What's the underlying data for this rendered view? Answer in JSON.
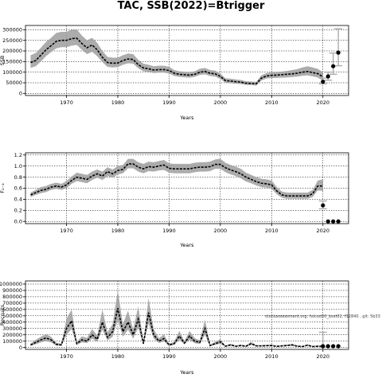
{
  "page": {
    "title": "TAC, SSB(2022)=Btrigger",
    "watermark": "stockassessment.org, fulcod20_bsst02, f12840 , git: 5b33"
  },
  "colors": {
    "band": "#9e9e9e",
    "line": "#000000",
    "dots": "#000000",
    "grid": "#000000",
    "projection_bar": "#a8a8a8"
  },
  "chart_data": [
    {
      "type": "line",
      "ylabel": "SSB",
      "xlabel": "Years",
      "xlim": [
        1962,
        2025
      ],
      "ylim": [
        -10000,
        320000
      ],
      "xticks": [
        1970,
        1980,
        1990,
        2000,
        2010,
        2020
      ],
      "yticks": [
        0,
        50000,
        100000,
        150000,
        200000,
        250000,
        300000
      ],
      "grid": true,
      "x": [
        1963,
        1964,
        1965,
        1966,
        1967,
        1968,
        1969,
        1970,
        1971,
        1972,
        1973,
        1974,
        1975,
        1976,
        1977,
        1978,
        1979,
        1980,
        1981,
        1982,
        1983,
        1984,
        1985,
        1986,
        1987,
        1988,
        1989,
        1990,
        1991,
        1992,
        1993,
        1994,
        1995,
        1996,
        1997,
        1998,
        1999,
        2000,
        2001,
        2002,
        2003,
        2004,
        2005,
        2006,
        2007,
        2008,
        2009,
        2010,
        2011,
        2012,
        2013,
        2014,
        2015,
        2016,
        2017,
        2018,
        2019,
        2020
      ],
      "series": [
        {
          "values": [
            145000,
            155000,
            180000,
            205000,
            225000,
            245000,
            250000,
            250000,
            258000,
            260000,
            235000,
            215000,
            228000,
            205000,
            170000,
            145000,
            142000,
            143000,
            155000,
            162000,
            160000,
            135000,
            120000,
            116000,
            110000,
            112000,
            112000,
            108000,
            95000,
            90000,
            88000,
            86000,
            90000,
            100000,
            103000,
            95000,
            92000,
            80000,
            60000,
            58000,
            55000,
            53000,
            48000,
            47000,
            45000,
            72000,
            82000,
            85000,
            86000,
            88000,
            90000,
            92000,
            95000,
            100000,
            103000,
            98000,
            93000,
            78000
          ],
          "lower": [
            120000,
            128000,
            150000,
            175000,
            195000,
            212000,
            218000,
            218000,
            225000,
            228000,
            205000,
            185000,
            196000,
            175000,
            147000,
            125000,
            122000,
            124000,
            135000,
            142000,
            140000,
            118000,
            104000,
            101000,
            96000,
            98000,
            98000,
            94000,
            82000,
            78000,
            76000,
            74000,
            78000,
            87000,
            90000,
            82000,
            79000,
            68000,
            50000,
            48000,
            46000,
            44000,
            40000,
            39000,
            37000,
            61000,
            70000,
            72000,
            73000,
            74000,
            75000,
            77000,
            79000,
            83000,
            85000,
            80000,
            75000,
            60000
          ],
          "upper": [
            180000,
            190000,
            215000,
            242000,
            262000,
            285000,
            290000,
            290000,
            300000,
            302000,
            272000,
            250000,
            262000,
            238000,
            200000,
            172000,
            168000,
            168000,
            180000,
            188000,
            185000,
            158000,
            140000,
            135000,
            128000,
            130000,
            130000,
            125000,
            110000,
            104000,
            102000,
            100000,
            104000,
            116000,
            120000,
            110000,
            107000,
            93000,
            71000,
            69000,
            66000,
            63000,
            57000,
            56000,
            54000,
            85000,
            96000,
            99000,
            100000,
            103000,
            106000,
            110000,
            114000,
            122000,
            128000,
            122000,
            115000,
            100000
          ]
        }
      ],
      "points": {
        "x": [
          2020,
          2021,
          2022,
          2023
        ],
        "y": [
          55000,
          80000,
          128000,
          192000
        ]
      },
      "projection_bars": [
        {
          "x": 2020,
          "low": 45000,
          "high": 72000
        },
        {
          "x": 2021,
          "low": 62000,
          "high": 100000
        },
        {
          "x": 2022,
          "low": 90000,
          "high": 190000
        },
        {
          "x": 2023,
          "low": 130000,
          "high": 305000
        }
      ]
    },
    {
      "type": "line",
      "ylabel": "F₂₋₄",
      "xlabel": "Years",
      "xlim": [
        1962,
        2025
      ],
      "ylim": [
        -0.04,
        1.24
      ],
      "xticks": [
        1970,
        1980,
        1990,
        2000,
        2010,
        2020
      ],
      "yticks": [
        0.0,
        0.2,
        0.4,
        0.6,
        0.8,
        1.0,
        1.2
      ],
      "ytick_labels": [
        "0.0",
        "0.2",
        "0.4",
        "0.6",
        "0.8",
        "1.0",
        "1.2"
      ],
      "grid": true,
      "x": [
        1963,
        1964,
        1965,
        1966,
        1967,
        1968,
        1969,
        1970,
        1971,
        1972,
        1973,
        1974,
        1975,
        1976,
        1977,
        1978,
        1979,
        1980,
        1981,
        1982,
        1983,
        1984,
        1985,
        1986,
        1987,
        1988,
        1989,
        1990,
        1991,
        1992,
        1993,
        1994,
        1995,
        1996,
        1997,
        1998,
        1999,
        2000,
        2001,
        2002,
        2003,
        2004,
        2005,
        2006,
        2007,
        2008,
        2009,
        2010,
        2011,
        2012,
        2013,
        2014,
        2015,
        2016,
        2017,
        2018,
        2019,
        2020
      ],
      "series": [
        {
          "values": [
            0.48,
            0.52,
            0.56,
            0.58,
            0.62,
            0.64,
            0.62,
            0.66,
            0.74,
            0.8,
            0.78,
            0.76,
            0.82,
            0.86,
            0.82,
            0.9,
            0.86,
            0.92,
            0.94,
            1.04,
            1.04,
            0.98,
            0.95,
            0.99,
            0.98,
            1.0,
            1.02,
            0.96,
            0.95,
            0.95,
            0.95,
            0.95,
            0.97,
            0.98,
            0.98,
            0.99,
            1.03,
            1.03,
            0.97,
            0.93,
            0.9,
            0.86,
            0.8,
            0.76,
            0.72,
            0.69,
            0.68,
            0.66,
            0.55,
            0.48,
            0.46,
            0.46,
            0.46,
            0.46,
            0.46,
            0.5,
            0.64,
            0.64
          ],
          "lower": [
            0.44,
            0.48,
            0.51,
            0.53,
            0.57,
            0.59,
            0.57,
            0.6,
            0.68,
            0.73,
            0.71,
            0.69,
            0.75,
            0.79,
            0.75,
            0.82,
            0.79,
            0.85,
            0.87,
            0.96,
            0.96,
            0.9,
            0.87,
            0.91,
            0.9,
            0.92,
            0.93,
            0.88,
            0.87,
            0.87,
            0.87,
            0.87,
            0.89,
            0.9,
            0.9,
            0.91,
            0.95,
            0.95,
            0.89,
            0.85,
            0.82,
            0.78,
            0.72,
            0.69,
            0.65,
            0.62,
            0.61,
            0.59,
            0.49,
            0.43,
            0.41,
            0.41,
            0.41,
            0.41,
            0.41,
            0.44,
            0.56,
            0.55
          ],
          "upper": [
            0.52,
            0.57,
            0.62,
            0.64,
            0.68,
            0.7,
            0.68,
            0.73,
            0.81,
            0.88,
            0.86,
            0.84,
            0.9,
            0.94,
            0.9,
            0.98,
            0.94,
            1.0,
            1.02,
            1.13,
            1.13,
            1.07,
            1.04,
            1.08,
            1.07,
            1.09,
            1.11,
            1.05,
            1.04,
            1.04,
            1.04,
            1.04,
            1.06,
            1.07,
            1.07,
            1.08,
            1.12,
            1.13,
            1.06,
            1.02,
            0.99,
            0.95,
            0.88,
            0.84,
            0.8,
            0.77,
            0.76,
            0.74,
            0.62,
            0.54,
            0.52,
            0.52,
            0.52,
            0.52,
            0.52,
            0.57,
            0.74,
            0.76
          ]
        }
      ],
      "points": {
        "x": [
          2020,
          2021,
          2022,
          2023
        ],
        "y": [
          0.29,
          0.0,
          0.0,
          0.0
        ]
      },
      "projection_bars": [
        {
          "x": 2020,
          "low": 0.23,
          "high": 0.37
        }
      ]
    },
    {
      "type": "line",
      "ylabel": "Recruits",
      "xlabel": "Years",
      "xlim": [
        1962,
        2025
      ],
      "ylim": [
        -30000,
        1050000
      ],
      "xticks": [
        1970,
        1980,
        1990,
        2000,
        2010,
        2020
      ],
      "yticks": [
        0,
        100000,
        200000,
        300000,
        400000,
        500000,
        600000,
        700000,
        800000,
        900000,
        1000000
      ],
      "grid": true,
      "x": [
        1963,
        1964,
        1965,
        1966,
        1967,
        1968,
        1969,
        1970,
        1971,
        1972,
        1973,
        1974,
        1975,
        1976,
        1977,
        1978,
        1979,
        1980,
        1981,
        1982,
        1983,
        1984,
        1985,
        1986,
        1987,
        1988,
        1989,
        1990,
        1991,
        1992,
        1993,
        1994,
        1995,
        1996,
        1997,
        1998,
        1999,
        2000,
        2001,
        2002,
        2003,
        2004,
        2005,
        2006,
        2007,
        2008,
        2009,
        2010,
        2011,
        2012,
        2013,
        2014,
        2015,
        2016,
        2017,
        2018,
        2019,
        2020
      ],
      "series": [
        {
          "values": [
            40000,
            80000,
            120000,
            150000,
            120000,
            50000,
            40000,
            300000,
            420000,
            60000,
            120000,
            100000,
            200000,
            130000,
            400000,
            160000,
            250000,
            620000,
            250000,
            400000,
            200000,
            450000,
            60000,
            550000,
            200000,
            100000,
            140000,
            40000,
            60000,
            180000,
            70000,
            180000,
            100000,
            80000,
            300000,
            30000,
            60000,
            90000,
            20000,
            40000,
            20000,
            30000,
            20000,
            60000,
            25000,
            25000,
            28000,
            30000,
            18000,
            25000,
            30000,
            40000,
            20000,
            15000,
            35000,
            15000,
            20000,
            20000
          ],
          "lower": [
            25000,
            50000,
            80000,
            100000,
            80000,
            30000,
            25000,
            200000,
            290000,
            40000,
            80000,
            70000,
            140000,
            90000,
            280000,
            110000,
            170000,
            430000,
            170000,
            280000,
            140000,
            310000,
            40000,
            380000,
            140000,
            70000,
            95000,
            26000,
            40000,
            120000,
            48000,
            120000,
            68000,
            54000,
            200000,
            20000,
            40000,
            60000,
            13000,
            26000,
            13000,
            20000,
            13000,
            40000,
            16000,
            16000,
            18000,
            20000,
            12000,
            16000,
            20000,
            26000,
            13000,
            10000,
            23000,
            10000,
            13000,
            12000
          ],
          "upper": [
            60000,
            120000,
            170000,
            210000,
            170000,
            75000,
            60000,
            450000,
            600000,
            90000,
            175000,
            150000,
            290000,
            190000,
            600000,
            240000,
            370000,
            900000,
            370000,
            580000,
            290000,
            650000,
            90000,
            780000,
            290000,
            145000,
            205000,
            60000,
            90000,
            260000,
            100000,
            260000,
            145000,
            115000,
            440000,
            45000,
            90000,
            130000,
            30000,
            60000,
            30000,
            45000,
            30000,
            90000,
            38000,
            38000,
            42000,
            45000,
            27000,
            38000,
            45000,
            60000,
            30000,
            22000,
            52000,
            22000,
            30000,
            30000
          ]
        }
      ],
      "points": {
        "x": [
          2020,
          2021,
          2022,
          2023
        ],
        "y": [
          20000,
          20000,
          20000,
          20000
        ]
      },
      "projection_bars": [
        {
          "x": 2020,
          "low": 5000,
          "high": 240000
        }
      ]
    }
  ]
}
